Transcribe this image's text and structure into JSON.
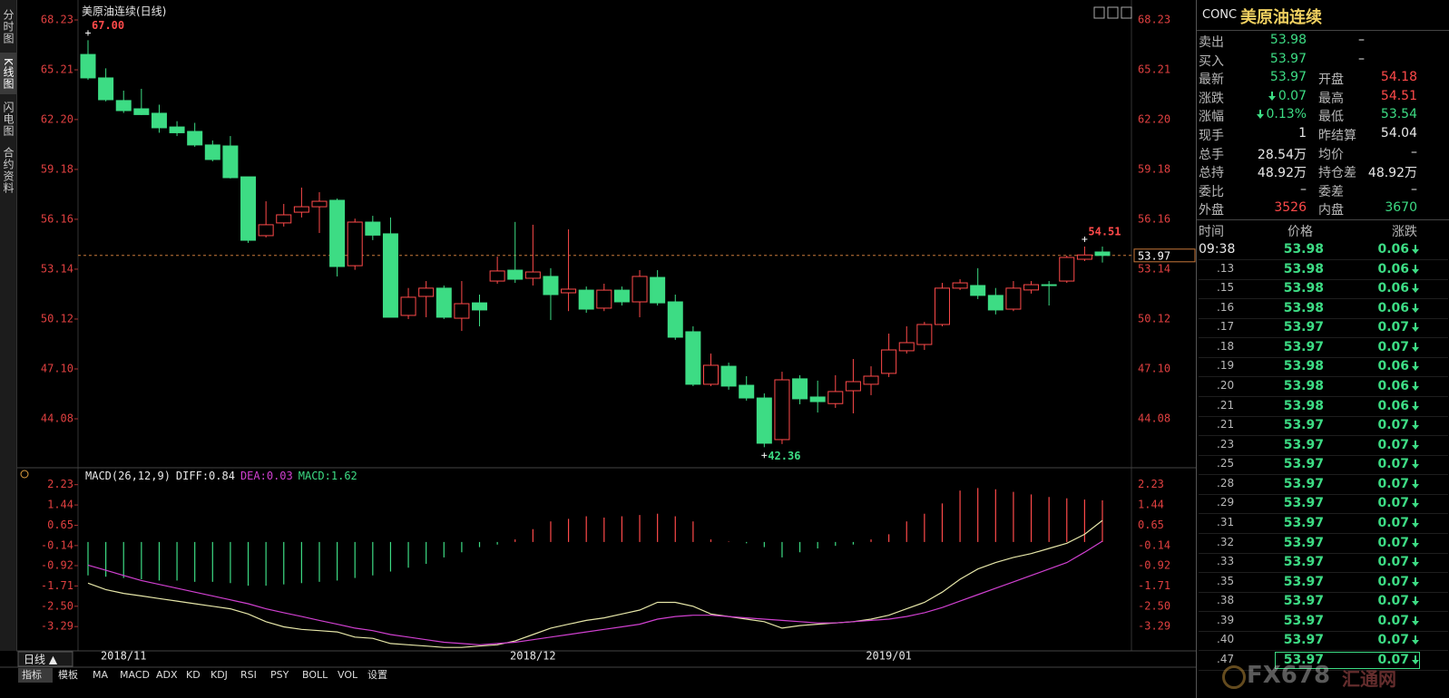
{
  "header": {
    "title": "美原油连续(日线)"
  },
  "side_tabs": [
    "分时图",
    "K线图",
    "闪电图",
    "合约资料"
  ],
  "chart_data": [
    {
      "type": "candlestick",
      "categories": [
        null,
        null,
        "2018/11",
        null,
        null,
        null,
        null,
        null,
        null,
        null,
        null,
        null,
        null,
        null,
        null,
        null,
        null,
        null,
        null,
        null,
        null,
        null,
        null,
        null,
        null,
        "2018/12",
        null,
        null,
        null,
        null,
        null,
        null,
        null,
        null,
        null,
        null,
        null,
        null,
        null,
        null,
        null,
        null,
        null,
        null,
        null,
        "2019/01",
        null,
        null,
        null,
        null,
        null,
        null,
        null,
        null,
        null,
        null,
        null,
        null
      ],
      "open": [
        66.14,
        64.72,
        63.35,
        62.85,
        62.58,
        61.75,
        61.48,
        60.66,
        60.6,
        58.73,
        55.17,
        55.94,
        56.59,
        56.92,
        57.31,
        53.35,
        55.99,
        55.28,
        50.34,
        51.49,
        51.99,
        50.17,
        51.1,
        52.42,
        53.08,
        52.59,
        52.7,
        51.71,
        51.87,
        50.78,
        51.87,
        51.16,
        52.64,
        51.16,
        49.35,
        46.17,
        47.26,
        46.11,
        45.34,
        42.82,
        46.5,
        45.4,
        45.0,
        45.78,
        46.17,
        46.83,
        48.2,
        48.58,
        49.79,
        51.99,
        52.15,
        51.55,
        50.72,
        51.88,
        52.2,
        52.42,
        53.74,
        54.18
      ],
      "high": [
        67.0,
        65.3,
        63.95,
        64.06,
        63.1,
        62.1,
        62.0,
        60.93,
        61.2,
        58.73,
        57.25,
        57.09,
        58.08,
        57.8,
        57.42,
        56.2,
        56.37,
        56.27,
        52.0,
        52.42,
        52.15,
        52.42,
        51.6,
        53.9,
        56.0,
        55.83,
        53.2,
        55.55,
        52.09,
        52.26,
        52.09,
        53.08,
        53.08,
        51.6,
        49.68,
        48.03,
        47.48,
        46.66,
        45.62,
        46.93,
        46.72,
        46.39,
        46.72,
        47.7,
        47.26,
        49.24,
        49.68,
        49.95,
        52.31,
        52.53,
        53.2,
        52.0,
        52.42,
        52.42,
        52.42,
        53.96,
        54.51,
        54.51
      ],
      "low": [
        64.6,
        63.3,
        62.6,
        62.47,
        61.4,
        61.2,
        60.55,
        59.67,
        58.63,
        54.73,
        55.06,
        55.72,
        56.27,
        55.33,
        52.7,
        53.1,
        54.9,
        50.23,
        50.12,
        50.23,
        50.12,
        49.4,
        49.68,
        52.26,
        52.31,
        52.15,
        50.06,
        50.6,
        50.5,
        50.6,
        50.94,
        50.23,
        50.94,
        48.86,
        46.06,
        46.06,
        45.84,
        45.18,
        42.36,
        42.55,
        44.96,
        44.46,
        44.74,
        44.41,
        45.51,
        46.61,
        48.03,
        48.25,
        49.68,
        51.88,
        51.33,
        50.4,
        50.6,
        51.66,
        50.94,
        52.31,
        53.63,
        53.54
      ],
      "close": [
        64.72,
        63.4,
        62.74,
        62.5,
        61.7,
        61.4,
        60.66,
        59.78,
        58.68,
        54.89,
        55.83,
        56.43,
        56.92,
        57.25,
        53.3,
        55.99,
        55.2,
        50.23,
        51.44,
        51.99,
        50.23,
        51.05,
        50.67,
        53.03,
        52.53,
        52.97,
        51.6,
        51.93,
        50.72,
        51.87,
        51.16,
        52.7,
        51.1,
        49.02,
        46.17,
        47.32,
        46.06,
        45.34,
        42.6,
        46.44,
        45.29,
        45.12,
        45.73,
        46.33,
        46.66,
        48.25,
        48.69,
        49.79,
        51.99,
        52.31,
        51.55,
        50.67,
        51.99,
        52.2,
        52.15,
        53.85,
        54.0,
        53.97
      ],
      "up_color": "#ff4a4a",
      "down_color": "#3ddc84",
      "ylim": [
        41.5,
        68.23
      ],
      "yticks": [
        68.23,
        65.21,
        {
          "value": 62.2,
          "label": "62.20"
        },
        59.18,
        56.16,
        53.14,
        50.12,
        {
          "value": 47.1,
          "label": "47.10"
        },
        44.08
      ],
      "annotations": [
        {
          "value": 67.0,
          "label": "67.00"
        },
        {
          "value": 42.36,
          "label": "42.36"
        },
        {
          "value": 54.51,
          "label": "54.51"
        }
      ],
      "last_price": {
        "value": 53.97,
        "label": "53.97"
      }
    },
    {
      "type": "macd",
      "label": "MACD(26,12,9)",
      "readouts": [
        "DIFF:0.84",
        "DEA:0.03",
        "MACD:1.62"
      ],
      "series": [
        {
          "color": "#e6e6a8",
          "values": [
            -1.6,
            -1.85,
            -2.0,
            -2.1,
            -2.2,
            -2.3,
            -2.4,
            -2.5,
            -2.6,
            -2.8,
            -3.1,
            -3.3,
            -3.4,
            -3.45,
            -3.5,
            -3.7,
            -3.75,
            -3.95,
            -4.0,
            -4.05,
            -4.1,
            -4.1,
            -4.05,
            -4.0,
            -3.85,
            -3.6,
            -3.35,
            -3.2,
            -3.05,
            -2.95,
            -2.8,
            -2.65,
            -2.35,
            -2.35,
            -2.5,
            -2.8,
            -2.9,
            -3.0,
            -3.1,
            -3.35,
            -3.25,
            -3.2,
            -3.15,
            -3.1,
            -3.0,
            -2.85,
            -2.6,
            -2.35,
            -1.95,
            -1.45,
            -1.05,
            -0.8,
            -0.6,
            -0.45,
            -0.25,
            -0.05,
            0.3,
            0.84
          ]
        },
        {
          "color": "#d040d0",
          "values": [
            -0.9,
            -1.1,
            -1.3,
            -1.5,
            -1.65,
            -1.8,
            -1.95,
            -2.1,
            -2.25,
            -2.4,
            -2.6,
            -2.75,
            -2.9,
            -3.05,
            -3.2,
            -3.35,
            -3.45,
            -3.6,
            -3.7,
            -3.8,
            -3.9,
            -3.95,
            -4.0,
            -3.95,
            -3.9,
            -3.8,
            -3.7,
            -3.6,
            -3.5,
            -3.4,
            -3.3,
            -3.2,
            -3.0,
            -2.9,
            -2.85,
            -2.85,
            -2.9,
            -2.95,
            -3.0,
            -3.05,
            -3.1,
            -3.15,
            -3.15,
            -3.1,
            -3.05,
            -3.0,
            -2.9,
            -2.75,
            -2.55,
            -2.3,
            -2.05,
            -1.8,
            -1.55,
            -1.3,
            -1.05,
            -0.8,
            -0.4,
            0.03
          ]
        },
        {
          "color": "#ff4a4a",
          "negative_color": "#3ddc84",
          "values": [
            -1.3,
            -1.35,
            -1.4,
            -1.45,
            -1.5,
            -1.5,
            -1.55,
            -1.55,
            -1.6,
            -1.7,
            -1.7,
            -1.65,
            -1.6,
            -1.55,
            -1.5,
            -1.4,
            -1.3,
            -1.15,
            -1.0,
            -0.85,
            -0.6,
            -0.4,
            -0.2,
            -0.1,
            0.1,
            0.5,
            0.8,
            0.9,
            1.0,
            0.95,
            1.0,
            1.05,
            1.1,
            1.0,
            0.8,
            0.1,
            0.02,
            -0.05,
            -0.2,
            -0.6,
            -0.4,
            -0.25,
            -0.15,
            -0.1,
            0.1,
            0.3,
            0.8,
            1.1,
            1.5,
            2.0,
            2.1,
            2.05,
            1.95,
            1.85,
            1.75,
            1.7,
            1.65,
            1.62
          ]
        }
      ],
      "ylim": [
        -4.2,
        2.5
      ],
      "yticks": [
        2.23,
        1.44,
        0.65,
        -0.14,
        -0.92,
        -1.71,
        {
          "value": -2.5,
          "label": "-2.50"
        },
        -3.29
      ]
    }
  ],
  "bottom": {
    "period": "日线 ▲",
    "tabs": [
      "指标",
      "模板",
      "MA",
      "MACD",
      "ADX",
      "KD",
      "KDJ",
      "RSI",
      "PSY",
      "BOLL",
      "VOL",
      "设置"
    ]
  },
  "quote": {
    "code": "CONC",
    "name": "美原油连续",
    "rows": [
      [
        "卖出",
        "53.98",
        "–"
      ],
      [
        "买入",
        "53.97",
        "–"
      ],
      [
        "最新",
        "53.97",
        "开盘",
        "54.18"
      ],
      [
        "涨跌",
        "0.07",
        "最高",
        "54.51"
      ],
      [
        "涨幅",
        "0.13%",
        "最低",
        "53.54"
      ],
      [
        "现手",
        "1",
        "昨结算",
        "54.04"
      ],
      [
        "总手",
        "28.54万",
        "均价",
        "–"
      ],
      [
        "总持",
        "48.92万",
        "持仓差",
        "48.92万"
      ],
      [
        "委比",
        "–",
        "委差",
        "–"
      ],
      [
        "外盘",
        "3526",
        "内盘",
        "3670"
      ]
    ]
  },
  "trades": {
    "header": [
      "时间",
      "价格",
      "涨跌"
    ],
    "rows": [
      [
        "09:38",
        "53.98",
        "0.06"
      ],
      [
        ".13",
        "53.98",
        "0.06"
      ],
      [
        ".15",
        "53.98",
        "0.06"
      ],
      [
        ".16",
        "53.98",
        "0.06"
      ],
      [
        ".17",
        "53.97",
        "0.07"
      ],
      [
        ".18",
        "53.97",
        "0.07"
      ],
      [
        ".19",
        "53.98",
        "0.06"
      ],
      [
        ".20",
        "53.98",
        "0.06"
      ],
      [
        ".21",
        "53.98",
        "0.06"
      ],
      [
        ".21",
        "53.97",
        "0.07"
      ],
      [
        ".23",
        "53.97",
        "0.07"
      ],
      [
        ".25",
        "53.97",
        "0.07"
      ],
      [
        ".28",
        "53.97",
        "0.07"
      ],
      [
        ".29",
        "53.97",
        "0.07"
      ],
      [
        ".31",
        "53.97",
        "0.07"
      ],
      [
        ".32",
        "53.97",
        "0.07"
      ],
      [
        ".33",
        "53.97",
        "0.07"
      ],
      [
        ".35",
        "53.97",
        "0.07"
      ],
      [
        ".38",
        "53.97",
        "0.07"
      ],
      [
        ".39",
        "53.97",
        "0.07"
      ],
      [
        ".40",
        "53.97",
        "0.07"
      ],
      [
        ".47",
        "53.97",
        "0.07"
      ]
    ]
  },
  "watermark": [
    "FX678",
    "汇通网"
  ]
}
